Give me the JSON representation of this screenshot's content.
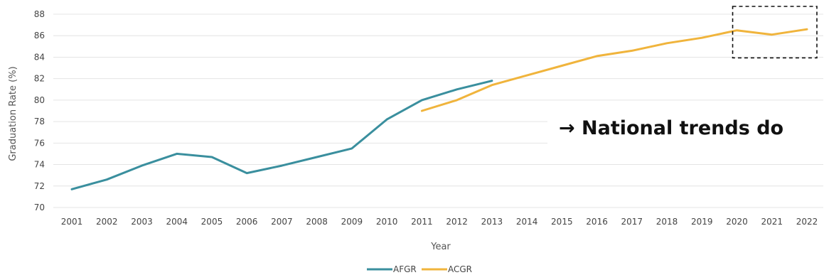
{
  "chart_data": {
    "type": "line",
    "xlabel": "Year",
    "ylabel": "Graduation Rate (%)",
    "ylim": [
      70,
      88
    ],
    "yticks": [
      70,
      72,
      74,
      76,
      78,
      80,
      82,
      84,
      86,
      88
    ],
    "grid": true,
    "legend_position": "bottom-center",
    "x": [
      2001,
      2002,
      2003,
      2004,
      2005,
      2006,
      2007,
      2008,
      2009,
      2010,
      2011,
      2012,
      2013,
      2014,
      2015,
      2016,
      2017,
      2018,
      2019,
      2020,
      2021,
      2022
    ],
    "series": [
      {
        "name": "AFGR",
        "color": "#3a8f9e",
        "x": [
          2001,
          2002,
          2003,
          2004,
          2005,
          2006,
          2007,
          2008,
          2009,
          2010,
          2011,
          2012,
          2013
        ],
        "values": [
          71.7,
          72.6,
          73.9,
          75.0,
          74.7,
          73.2,
          73.9,
          74.7,
          75.5,
          78.2,
          80.0,
          81.0,
          81.8
        ]
      },
      {
        "name": "ACGR",
        "color": "#f0b43c",
        "x": [
          2011,
          2012,
          2013,
          2014,
          2015,
          2016,
          2017,
          2018,
          2019,
          2020,
          2021,
          2022
        ],
        "values": [
          79.0,
          80.0,
          81.4,
          82.3,
          83.2,
          84.1,
          84.6,
          85.3,
          85.8,
          86.5,
          86.1,
          86.6
        ]
      }
    ],
    "annotations": [
      {
        "type": "dashed-box",
        "x_range": [
          2020,
          2022
        ],
        "y_range": [
          84,
          88
        ]
      }
    ]
  },
  "callout": {
    "text": "→ National trends do"
  }
}
